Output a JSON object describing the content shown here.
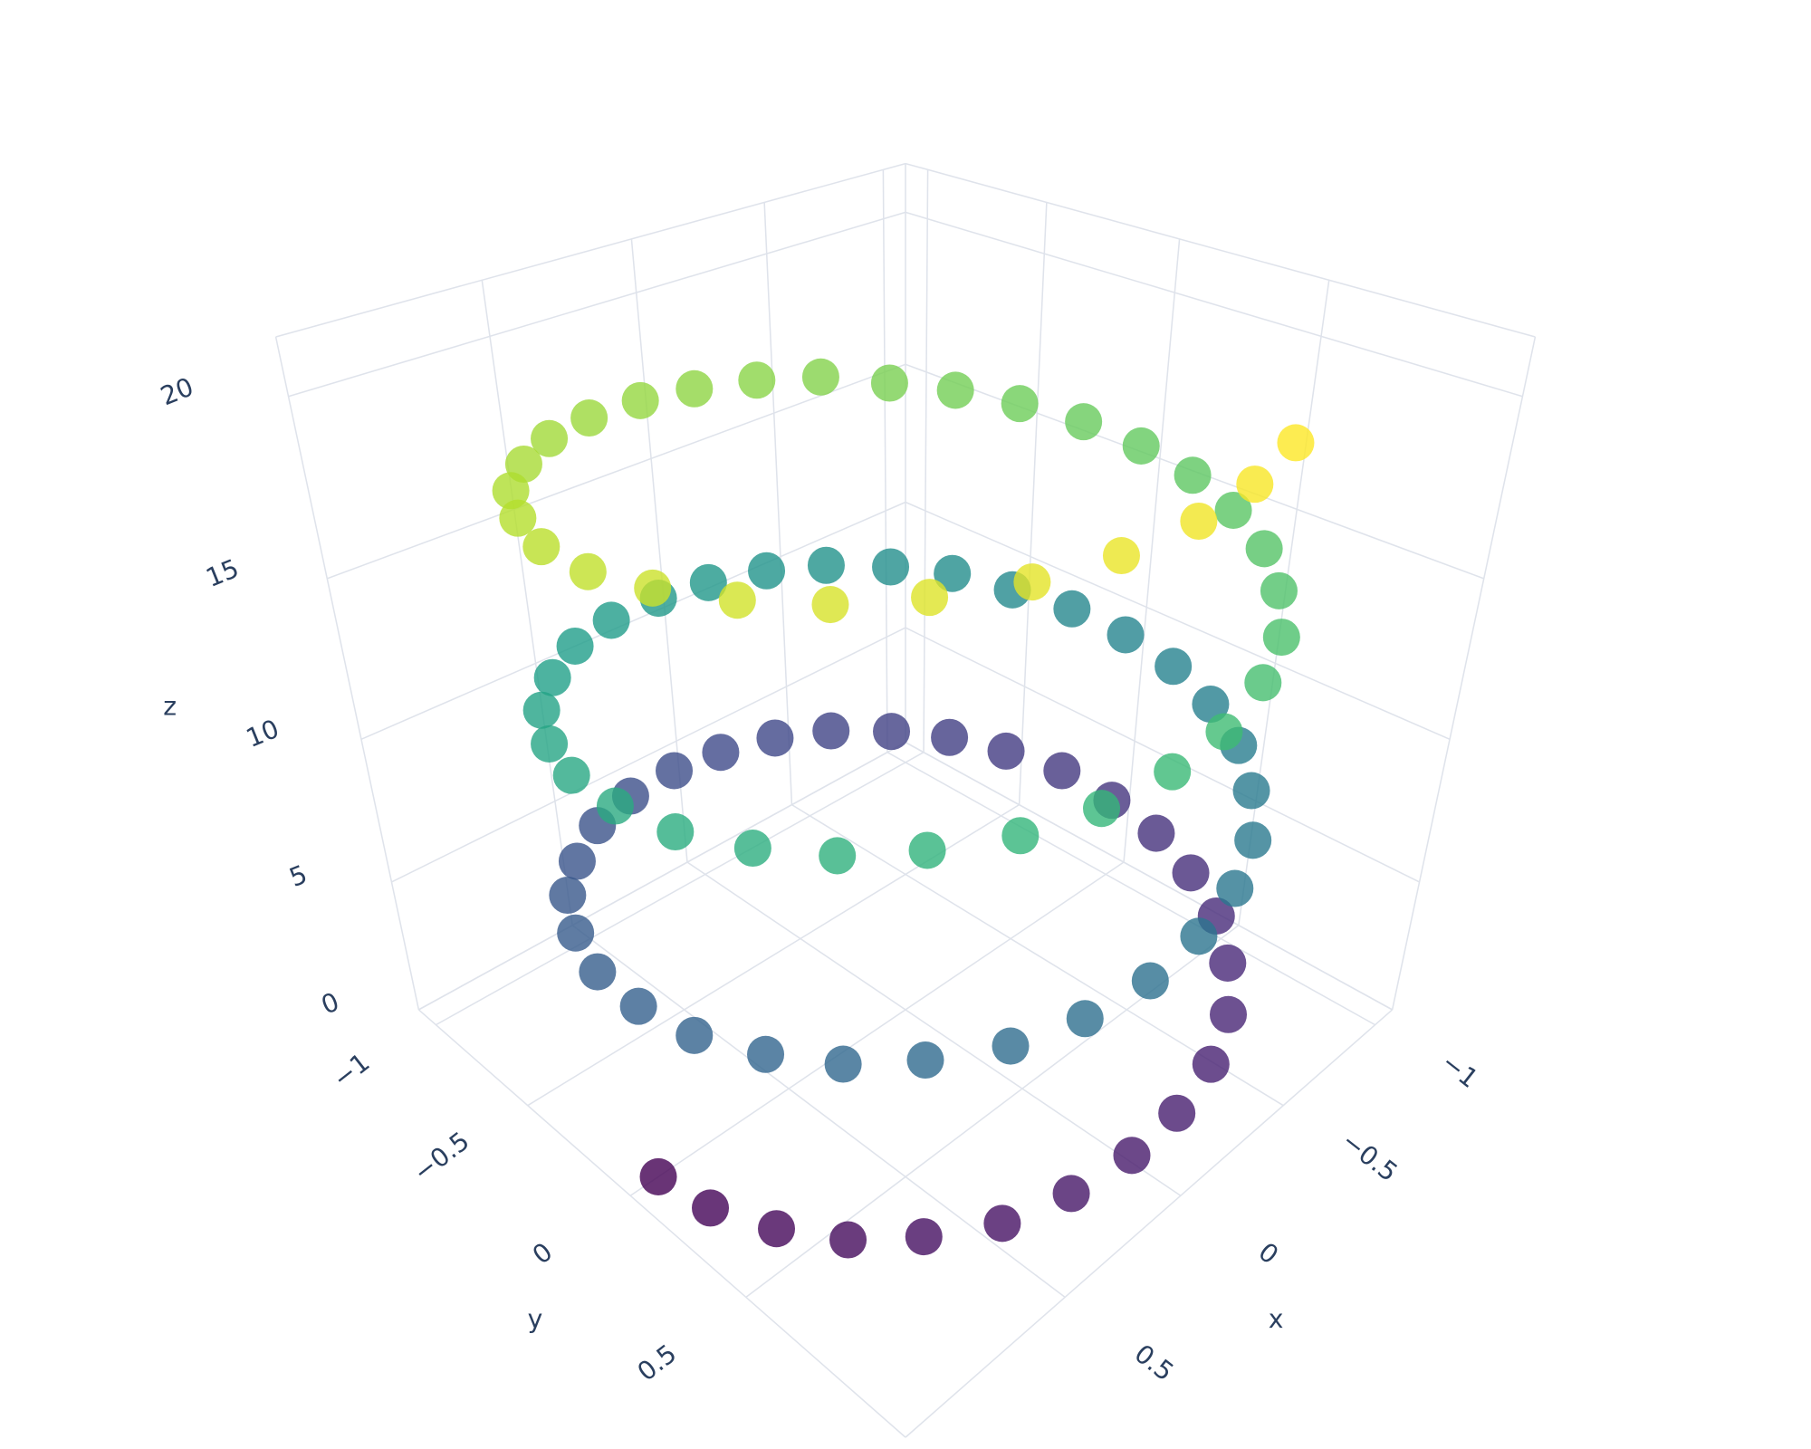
{
  "chart_data": {
    "type": "scatter3d",
    "xlabel": "x",
    "ylabel": "y",
    "zlabel": "z",
    "x": [
      1,
      0.98,
      0.91,
      0.81,
      0.67,
      0.5,
      0.31,
      0.1,
      -0.1,
      -0.31,
      -0.5,
      -0.67,
      -0.81,
      -0.91,
      -0.98,
      -1,
      -0.98,
      -0.91,
      -0.81,
      -0.67,
      -0.5,
      -0.31,
      -0.1,
      0.1,
      0.31,
      0.5,
      0.67,
      0.81,
      0.91,
      0.98,
      1,
      0.98,
      0.91,
      0.81,
      0.67,
      0.5,
      0.31,
      0.1,
      -0.1,
      -0.31,
      -0.5,
      -0.67,
      -0.81,
      -0.91,
      -0.98,
      -1,
      -0.98,
      -0.91,
      -0.81,
      -0.67,
      -0.5,
      -0.31,
      -0.1,
      0.1,
      0.31,
      0.5,
      0.67,
      0.81,
      0.91,
      0.98,
      1,
      0.98,
      0.91,
      0.81,
      0.67,
      0.5,
      0.31,
      0.1,
      -0.1,
      -0.31,
      -0.5,
      -0.67,
      -0.81,
      -0.91,
      -0.98,
      -1,
      -0.98,
      -0.91,
      -0.81,
      -0.67,
      -0.5,
      -0.31,
      -0.1,
      0.1,
      0.31,
      0.5,
      0.67,
      0.81,
      0.91,
      0.98,
      1,
      0.98,
      0.91,
      0.81,
      0.67,
      0.5,
      0.31,
      0.1,
      -0.1,
      -0.31
    ],
    "y": [
      0,
      0.21,
      0.41,
      0.59,
      0.74,
      0.87,
      0.95,
      0.99,
      0.99,
      0.95,
      0.87,
      0.74,
      0.59,
      0.41,
      0.21,
      0,
      -0.21,
      -0.41,
      -0.59,
      -0.74,
      -0.87,
      -0.95,
      -0.99,
      -0.99,
      -0.95,
      -0.87,
      -0.74,
      -0.59,
      -0.41,
      -0.21,
      0,
      0.21,
      0.41,
      0.59,
      0.74,
      0.87,
      0.95,
      0.99,
      0.99,
      0.95,
      0.87,
      0.74,
      0.59,
      0.41,
      0.21,
      0,
      -0.21,
      -0.41,
      -0.59,
      -0.74,
      -0.87,
      -0.95,
      -0.99,
      -0.99,
      -0.95,
      -0.87,
      -0.74,
      -0.59,
      -0.41,
      -0.21,
      0,
      0.21,
      0.41,
      0.59,
      0.74,
      0.87,
      0.95,
      0.99,
      0.99,
      0.95,
      0.87,
      0.74,
      0.59,
      0.41,
      0.21,
      0,
      -0.21,
      -0.41,
      -0.59,
      -0.74,
      -0.87,
      -0.95,
      -0.99,
      -0.99,
      -0.95,
      -0.87,
      -0.74,
      -0.59,
      -0.41,
      -0.21,
      0,
      0.21,
      0.41,
      0.59,
      0.74,
      0.87,
      0.95,
      0.99,
      0.99,
      0.95
    ],
    "z": [
      0,
      0.2,
      0.4,
      0.6,
      0.8,
      1.0,
      1.3,
      1.5,
      1.7,
      1.9,
      2.1,
      2.3,
      2.5,
      2.7,
      2.9,
      3.1,
      3.4,
      3.6,
      3.8,
      4.0,
      4.2,
      4.4,
      4.6,
      4.8,
      5.0,
      5.2,
      5.4,
      5.7,
      5.9,
      6.1,
      6.3,
      6.5,
      6.7,
      6.9,
      7.1,
      7.3,
      7.5,
      7.7,
      8.0,
      8.2,
      8.4,
      8.6,
      8.8,
      9.0,
      9.2,
      9.4,
      9.6,
      9.8,
      10.1,
      10.3,
      10.5,
      10.7,
      10.9,
      11.1,
      11.3,
      11.5,
      11.7,
      11.9,
      12.1,
      12.4,
      12.6,
      12.8,
      13.0,
      13.2,
      13.4,
      13.6,
      13.8,
      14.0,
      14.2,
      14.5,
      14.7,
      14.9,
      15.1,
      15.3,
      15.5,
      15.7,
      15.9,
      16.1,
      16.3,
      16.5,
      16.8,
      17.0,
      17.2,
      17.4,
      17.6,
      17.8,
      18.0,
      18.2,
      18.4,
      18.6,
      18.8,
      19.1,
      19.3,
      19.5,
      19.7,
      19.9,
      20.1,
      20.3,
      20.5,
      20.7
    ],
    "colorscale": "Viridis",
    "opacity": 0.8,
    "xlim": [
      -1.1,
      1.1
    ],
    "ylim": [
      -1.1,
      1.1
    ],
    "zlim": [
      0,
      21.5
    ],
    "xticks": [
      {
        "value": -1,
        "label": "−1"
      },
      {
        "value": -0.5,
        "label": "−0.5"
      },
      0,
      0.5
    ],
    "yticks": [
      {
        "value": -1,
        "label": "−1"
      },
      {
        "value": -0.5,
        "label": "−0.5"
      },
      0,
      0.5
    ],
    "zticks": [
      0,
      5,
      10,
      15,
      20
    ],
    "grid": true
  }
}
